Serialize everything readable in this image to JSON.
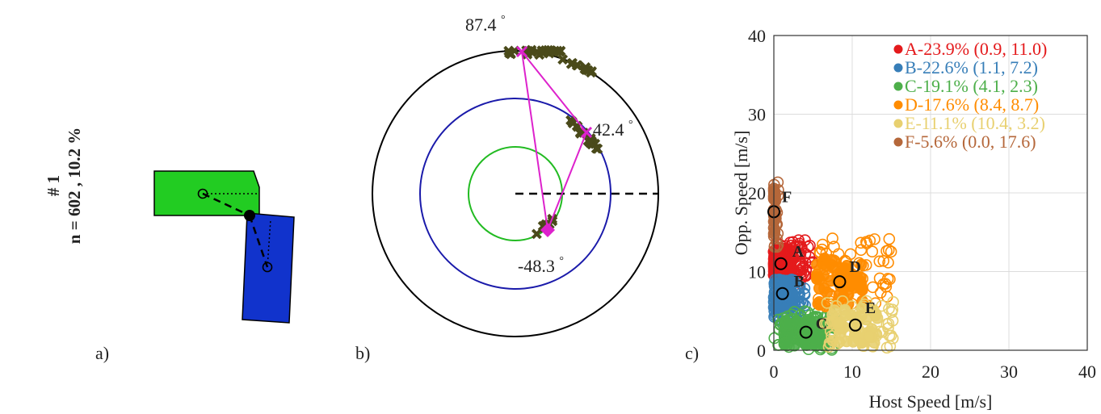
{
  "side_label": {
    "title": "# 1",
    "subtitle": "n = 602 , 10.2 %"
  },
  "panel_labels": {
    "a": "a)",
    "b": "b)",
    "c": "c)"
  },
  "colors": {
    "host_vehicle": "#22cc22",
    "opponent_vehicle": "#1133cc",
    "polar_outer": "#000000",
    "polar_middle": "#1a1aaa",
    "polar_inner": "#22bb22",
    "polar_markers": "#4a4a1a",
    "polar_path": "#dd22cc"
  },
  "polar": {
    "angle_labels": [
      "87.4",
      "42.4",
      "-48.3"
    ],
    "degree_symbol": "°"
  },
  "chart_data": {
    "type": "scatter",
    "xlabel": "Host Speed [m/s]",
    "ylabel": "Opp. Speed [m/s]",
    "xlim": [
      0,
      40
    ],
    "ylim": [
      0,
      40
    ],
    "xticks": [
      "0",
      "10",
      "20",
      "30",
      "40"
    ],
    "yticks": [
      "0",
      "10",
      "20",
      "30",
      "40"
    ],
    "grid": true,
    "legend_position": "top-right",
    "series": [
      {
        "name": "A-23.9% (0.9, 11.0)",
        "label": "A",
        "color": "#e41a1c",
        "center": [
          0.9,
          11.0
        ]
      },
      {
        "name": "B-22.6% (1.1, 7.2)",
        "label": "B",
        "color": "#377eb8",
        "center": [
          1.1,
          7.2
        ]
      },
      {
        "name": "C-19.1% (4.1, 2.3)",
        "label": "C",
        "color": "#4daf4a",
        "center": [
          4.1,
          2.3
        ]
      },
      {
        "name": "D-17.6% (8.4, 8.7)",
        "label": "D",
        "color": "#ff8c00",
        "center": [
          8.4,
          8.7
        ]
      },
      {
        "name": "E-11.1% (10.4, 3.2)",
        "label": "E",
        "color": "#e8d070",
        "center": [
          10.4,
          3.2
        ]
      },
      {
        "name": "F-5.6% (0.0, 17.6)",
        "label": "F",
        "color": "#b5673a",
        "center": [
          0.0,
          17.6
        ]
      }
    ]
  }
}
